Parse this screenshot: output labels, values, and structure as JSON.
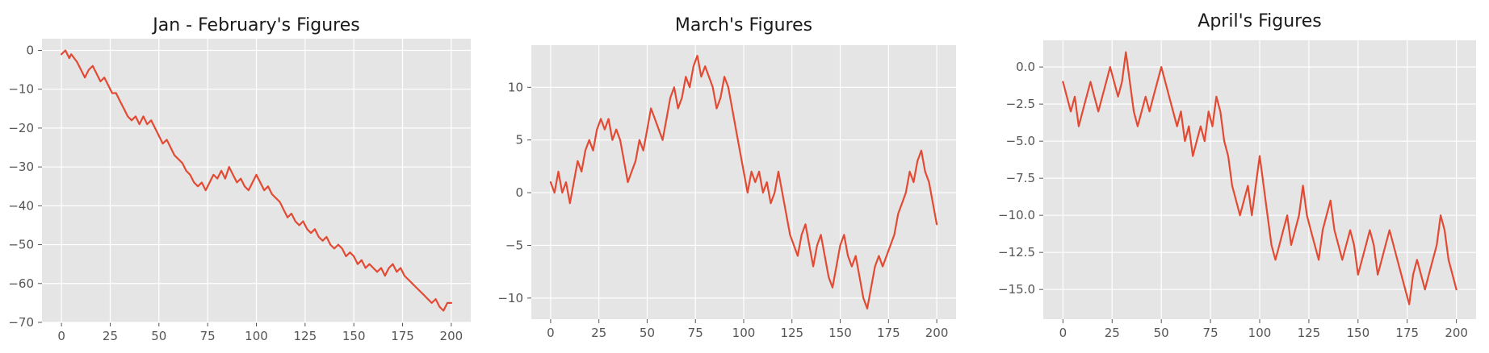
{
  "chart_data": [
    {
      "type": "line",
      "title": "Jan - February's Figures",
      "xlabel": "",
      "ylabel": "",
      "xlim": [
        -10,
        210
      ],
      "ylim": [
        -70,
        3
      ],
      "xticks": [
        0,
        25,
        50,
        75,
        100,
        125,
        150,
        175,
        200
      ],
      "yticks": [
        0,
        -10,
        -20,
        -30,
        -40,
        -50,
        -60,
        -70
      ],
      "grid": true,
      "line_color": "#E24A33",
      "series": [
        {
          "x": [
            0,
            2,
            4,
            5,
            8,
            10,
            12,
            14,
            16,
            18,
            20,
            22,
            24,
            26,
            28,
            30,
            32,
            34,
            36,
            38,
            40,
            42,
            44,
            46,
            48,
            50,
            52,
            54,
            56,
            58,
            60,
            62,
            64,
            66,
            68,
            70,
            72,
            74,
            76,
            78,
            80,
            82,
            84,
            86,
            88,
            90,
            92,
            94,
            96,
            98,
            100,
            102,
            104,
            106,
            108,
            110,
            112,
            114,
            116,
            118,
            120,
            122,
            124,
            126,
            128,
            130,
            132,
            134,
            136,
            138,
            140,
            142,
            144,
            146,
            148,
            150,
            152,
            154,
            156,
            158,
            160,
            162,
            164,
            166,
            168,
            170,
            172,
            174,
            176,
            178,
            180,
            182,
            184,
            186,
            188,
            190,
            192,
            194,
            196,
            198,
            200
          ],
          "y": [
            -1,
            0,
            -2,
            -1,
            -3,
            -5,
            -7,
            -5,
            -4,
            -6,
            -8,
            -7,
            -9,
            -11,
            -11,
            -13,
            -15,
            -17,
            -18,
            -17,
            -19,
            -17,
            -19,
            -18,
            -20,
            -22,
            -24,
            -23,
            -25,
            -27,
            -28,
            -29,
            -31,
            -32,
            -34,
            -35,
            -34,
            -36,
            -34,
            -32,
            -33,
            -31,
            -33,
            -30,
            -32,
            -34,
            -33,
            -35,
            -36,
            -34,
            -32,
            -34,
            -36,
            -35,
            -37,
            -38,
            -39,
            -41,
            -43,
            -42,
            -44,
            -45,
            -44,
            -46,
            -47,
            -46,
            -48,
            -49,
            -48,
            -50,
            -51,
            -50,
            -51,
            -53,
            -52,
            -53,
            -55,
            -54,
            -56,
            -55,
            -56,
            -57,
            -56,
            -58,
            -56,
            -55,
            -57,
            -56,
            -58,
            -59,
            -60,
            -61,
            -62,
            -63,
            -64,
            -65,
            -64,
            -66,
            -67,
            -65,
            -65
          ]
        }
      ]
    },
    {
      "type": "line",
      "title": "March's Figures",
      "xlabel": "",
      "ylabel": "",
      "xlim": [
        -10,
        210
      ],
      "ylim": [
        -12,
        14
      ],
      "xticks": [
        0,
        25,
        50,
        75,
        100,
        125,
        150,
        175,
        200
      ],
      "yticks": [
        10,
        5,
        0,
        -5,
        -10
      ],
      "grid": true,
      "line_color": "#E24A33",
      "series": [
        {
          "x": [
            0,
            2,
            4,
            6,
            8,
            10,
            12,
            14,
            16,
            18,
            20,
            22,
            24,
            26,
            28,
            30,
            32,
            34,
            36,
            38,
            40,
            42,
            44,
            46,
            48,
            50,
            52,
            54,
            56,
            58,
            60,
            62,
            64,
            66,
            68,
            70,
            72,
            74,
            76,
            78,
            80,
            82,
            84,
            86,
            88,
            90,
            92,
            94,
            96,
            98,
            100,
            102,
            104,
            106,
            108,
            110,
            112,
            114,
            116,
            118,
            120,
            122,
            124,
            126,
            128,
            130,
            132,
            134,
            136,
            138,
            140,
            142,
            144,
            146,
            148,
            150,
            152,
            154,
            156,
            158,
            160,
            162,
            164,
            166,
            168,
            170,
            172,
            174,
            176,
            178,
            180,
            182,
            184,
            186,
            188,
            190,
            192,
            194,
            196,
            198,
            200
          ],
          "y": [
            1,
            0,
            2,
            0,
            1,
            -1,
            1,
            3,
            2,
            4,
            5,
            4,
            6,
            7,
            6,
            7,
            5,
            6,
            5,
            3,
            1,
            2,
            3,
            5,
            4,
            6,
            8,
            7,
            6,
            5,
            7,
            9,
            10,
            8,
            9,
            11,
            10,
            12,
            13,
            11,
            12,
            11,
            10,
            8,
            9,
            11,
            10,
            8,
            6,
            4,
            2,
            0,
            2,
            1,
            2,
            0,
            1,
            -1,
            0,
            2,
            0,
            -2,
            -4,
            -5,
            -6,
            -4,
            -3,
            -5,
            -7,
            -5,
            -4,
            -6,
            -8,
            -9,
            -7,
            -5,
            -4,
            -6,
            -7,
            -6,
            -8,
            -10,
            -11,
            -9,
            -7,
            -6,
            -7,
            -6,
            -5,
            -4,
            -2,
            -1,
            0,
            2,
            1,
            3,
            4,
            2,
            1,
            -1,
            -3
          ]
        }
      ]
    },
    {
      "type": "line",
      "title": "April's Figures",
      "xlabel": "",
      "ylabel": "",
      "xlim": [
        -10,
        210
      ],
      "ylim": [
        -17,
        1.8
      ],
      "xticks": [
        0,
        25,
        50,
        75,
        100,
        125,
        150,
        175,
        200
      ],
      "yticks": [
        0.0,
        -2.5,
        -5.0,
        -7.5,
        -10.0,
        -12.5,
        -15.0
      ],
      "ytick_labels": [
        "0.0",
        "−2.5",
        "−5.0",
        "−7.5",
        "−10.0",
        "−12.5",
        "−15.0"
      ],
      "grid": true,
      "line_color": "#E24A33",
      "series": [
        {
          "x": [
            0,
            2,
            4,
            6,
            8,
            10,
            12,
            14,
            16,
            18,
            20,
            22,
            24,
            26,
            28,
            30,
            32,
            34,
            36,
            38,
            40,
            42,
            44,
            46,
            48,
            50,
            52,
            54,
            56,
            58,
            60,
            62,
            64,
            66,
            68,
            70,
            72,
            74,
            76,
            78,
            80,
            82,
            84,
            86,
            88,
            90,
            92,
            94,
            96,
            98,
            100,
            102,
            104,
            106,
            108,
            110,
            112,
            114,
            116,
            118,
            120,
            122,
            124,
            126,
            128,
            130,
            132,
            134,
            136,
            138,
            140,
            142,
            144,
            146,
            148,
            150,
            152,
            154,
            156,
            158,
            160,
            162,
            164,
            166,
            168,
            170,
            172,
            174,
            176,
            178,
            180,
            182,
            184,
            186,
            188,
            190,
            192,
            194,
            196,
            198,
            200
          ],
          "y": [
            -1,
            -2,
            -3,
            -2,
            -4,
            -3,
            -2,
            -1,
            -2,
            -3,
            -2,
            -1,
            0,
            -1,
            -2,
            -1,
            1,
            -1,
            -3,
            -4,
            -3,
            -2,
            -3,
            -2,
            -1,
            0,
            -1,
            -2,
            -3,
            -4,
            -3,
            -5,
            -4,
            -6,
            -5,
            -4,
            -5,
            -3,
            -4,
            -2,
            -3,
            -5,
            -6,
            -8,
            -9,
            -10,
            -9,
            -8,
            -10,
            -8,
            -6,
            -8,
            -10,
            -12,
            -13,
            -12,
            -11,
            -10,
            -12,
            -11,
            -10,
            -8,
            -10,
            -11,
            -12,
            -13,
            -11,
            -10,
            -9,
            -11,
            -12,
            -13,
            -12,
            -11,
            -12,
            -14,
            -13,
            -12,
            -11,
            -12,
            -14,
            -13,
            -12,
            -11,
            -12,
            -13,
            -14,
            -15,
            -16,
            -14,
            -13,
            -14,
            -15,
            -14,
            -13,
            -12,
            -10,
            -11,
            -13,
            -14,
            -15
          ]
        }
      ]
    }
  ]
}
